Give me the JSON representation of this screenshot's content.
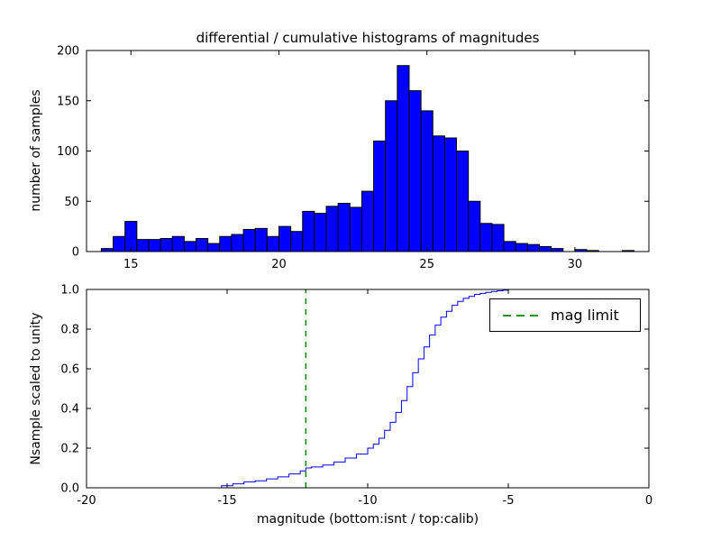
{
  "figure": {
    "background": "#ffffff",
    "frame_color": "#000000"
  },
  "chart_data": [
    {
      "type": "bar",
      "title": "differential / cumulative histograms of magnitudes",
      "ylabel": "number of samples",
      "xlabel": "",
      "xlim": [
        13.5,
        32.5
      ],
      "ylim": [
        0,
        200
      ],
      "xticks": [
        15,
        20,
        25,
        30
      ],
      "xtick_labels": [
        "15",
        "20",
        "25",
        "30"
      ],
      "yticks": [
        0,
        50,
        100,
        150,
        200
      ],
      "ytick_labels": [
        "0",
        "50",
        "100",
        "150",
        "200"
      ],
      "grid": false,
      "bar_color": "#0000ff",
      "bar_edge_color": "#000000",
      "bin_start": 14.0,
      "bin_width": 0.4,
      "values": [
        3,
        15,
        30,
        12,
        12,
        13,
        15,
        10,
        13,
        8,
        15,
        17,
        22,
        23,
        15,
        25,
        20,
        40,
        38,
        45,
        48,
        44,
        60,
        110,
        150,
        185,
        160,
        140,
        115,
        113,
        100,
        50,
        28,
        27,
        10,
        8,
        7,
        5,
        3,
        0,
        2,
        1,
        0,
        0,
        1
      ]
    },
    {
      "type": "line",
      "title": "",
      "ylabel": "Nsample scaled to unity",
      "xlabel": "magnitude (bottom:isnt / top:calib)",
      "xlim": [
        -20,
        0
      ],
      "ylim": [
        0,
        1
      ],
      "xticks": [
        -20,
        -15,
        -10,
        -5,
        0
      ],
      "xtick_labels": [
        "-20",
        "-15",
        "-10",
        "-5",
        "0"
      ],
      "yticks": [
        0.0,
        0.2,
        0.4,
        0.6,
        0.8,
        1.0
      ],
      "ytick_labels": [
        "0.0",
        "0.2",
        "0.4",
        "0.6",
        "0.8",
        "1.0"
      ],
      "grid": false,
      "step": true,
      "line_color": "#0000ff",
      "points": [
        [
          -15.6,
          0.0
        ],
        [
          -15.2,
          0.01
        ],
        [
          -14.8,
          0.02
        ],
        [
          -14.4,
          0.03
        ],
        [
          -14.0,
          0.035
        ],
        [
          -13.6,
          0.045
        ],
        [
          -13.2,
          0.055
        ],
        [
          -12.8,
          0.07
        ],
        [
          -12.4,
          0.085
        ],
        [
          -12.2,
          0.1
        ],
        [
          -12.0,
          0.105
        ],
        [
          -11.6,
          0.115
        ],
        [
          -11.2,
          0.13
        ],
        [
          -10.8,
          0.15
        ],
        [
          -10.4,
          0.17
        ],
        [
          -10.0,
          0.2
        ],
        [
          -9.8,
          0.22
        ],
        [
          -9.6,
          0.25
        ],
        [
          -9.4,
          0.29
        ],
        [
          -9.2,
          0.33
        ],
        [
          -9.0,
          0.38
        ],
        [
          -8.8,
          0.44
        ],
        [
          -8.6,
          0.51
        ],
        [
          -8.4,
          0.58
        ],
        [
          -8.2,
          0.65
        ],
        [
          -8.0,
          0.71
        ],
        [
          -7.8,
          0.77
        ],
        [
          -7.6,
          0.82
        ],
        [
          -7.4,
          0.86
        ],
        [
          -7.2,
          0.89
        ],
        [
          -7.0,
          0.92
        ],
        [
          -6.8,
          0.94
        ],
        [
          -6.6,
          0.955
        ],
        [
          -6.4,
          0.965
        ],
        [
          -6.2,
          0.975
        ],
        [
          -6.0,
          0.98
        ],
        [
          -5.8,
          0.985
        ],
        [
          -5.6,
          0.99
        ],
        [
          -5.4,
          0.993
        ],
        [
          -5.2,
          0.996
        ],
        [
          -5.0,
          1.0
        ],
        [
          0.0,
          1.0
        ]
      ],
      "mag_limit": {
        "x": -12.2,
        "color": "#008000",
        "style": "dashed",
        "label": "mag limit"
      },
      "legend": {
        "label": "mag limit",
        "position": "upper right"
      }
    }
  ]
}
